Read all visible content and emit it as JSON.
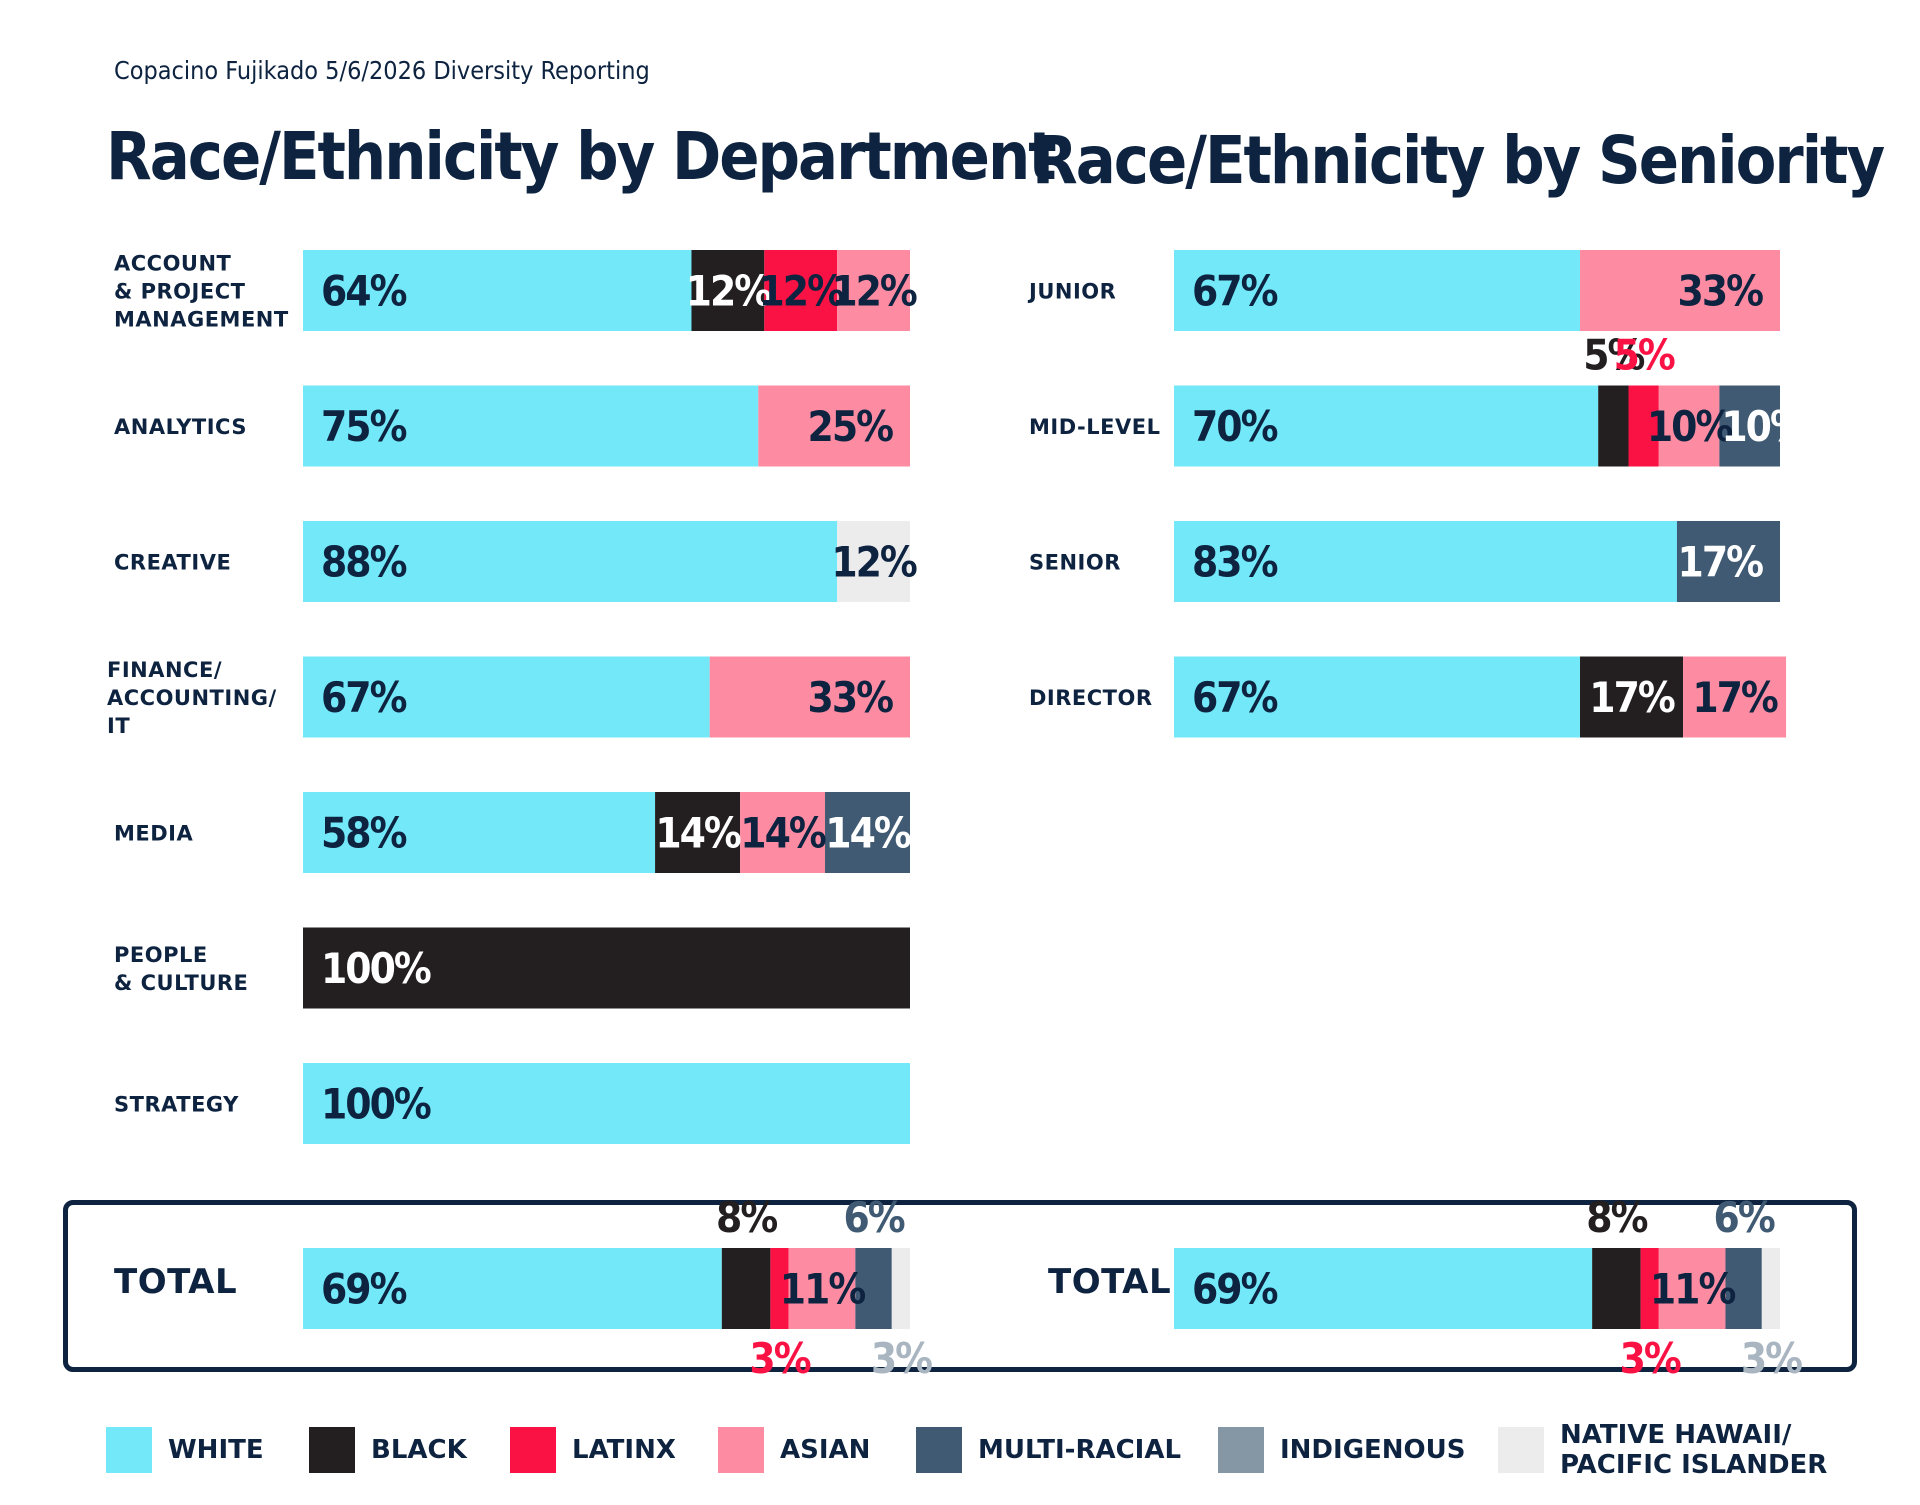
{
  "subtitle": "Copacino Fujikado 5/6/2026 Diversity Reporting",
  "colors": {
    "white": "#72e8f8",
    "black": "#231f20",
    "latinx": "#fb1245",
    "asian": "#fd8ca3",
    "multiracial": "#3f5a72",
    "indigenous": "#8596a5",
    "nhpi": "#ececec",
    "navy": "#0d2340"
  },
  "legend": [
    {
      "key": "white",
      "label": "WHITE",
      "icon": "swatch-square"
    },
    {
      "key": "black",
      "label": "BLACK",
      "icon": "swatch-square"
    },
    {
      "key": "latinx",
      "label": "LATINX",
      "icon": "swatch-square"
    },
    {
      "key": "asian",
      "label": "ASIAN",
      "icon": "swatch-square"
    },
    {
      "key": "multiracial",
      "label": "MULTI-RACIAL",
      "icon": "swatch-square"
    },
    {
      "key": "indigenous",
      "label": "INDIGENOUS",
      "icon": "swatch-square"
    },
    {
      "key": "nhpi",
      "label": "NATIVE HAWAII/\nPACIFIC ISLANDER",
      "icon": "swatch-square"
    }
  ],
  "chart_data": [
    {
      "type": "bar",
      "orientation": "horizontal-stacked-100",
      "title": "Race/Ethnicity by Department",
      "categories": [
        "ACCOUNT\n& PROJECT\nMANAGEMENT",
        "ANALYTICS",
        "CREATIVE",
        "FINANCE/\nACCOUNTING/\nIT",
        "MEDIA",
        "PEOPLE\n& CULTURE",
        "STRATEGY"
      ],
      "series": [
        {
          "name": "WHITE",
          "key": "white",
          "values": [
            64,
            75,
            88,
            67,
            58,
            0,
            100
          ]
        },
        {
          "name": "BLACK",
          "key": "black",
          "values": [
            12,
            0,
            0,
            0,
            14,
            100,
            0
          ]
        },
        {
          "name": "LATINX",
          "key": "latinx",
          "values": [
            12,
            0,
            0,
            0,
            0,
            0,
            0
          ]
        },
        {
          "name": "ASIAN",
          "key": "asian",
          "values": [
            12,
            25,
            0,
            33,
            14,
            0,
            0
          ]
        },
        {
          "name": "MULTI-RACIAL",
          "key": "multiracial",
          "values": [
            0,
            0,
            0,
            0,
            14,
            0,
            0
          ]
        },
        {
          "name": "INDIGENOUS",
          "key": "indigenous",
          "values": [
            0,
            0,
            0,
            0,
            0,
            0,
            0
          ]
        },
        {
          "name": "NATIVE HAWAII/PACIFIC ISLANDER",
          "key": "nhpi",
          "values": [
            0,
            0,
            12,
            0,
            0,
            0,
            0
          ]
        }
      ],
      "total": {
        "label": "TOTAL",
        "values": {
          "white": 69,
          "black": 8,
          "latinx": 3,
          "asian": 11,
          "multiracial": 6,
          "indigenous": 0,
          "nhpi": 3
        }
      },
      "xlim": [
        0,
        100
      ]
    },
    {
      "type": "bar",
      "orientation": "horizontal-stacked-100",
      "title": "Race/Ethnicity by Seniority",
      "categories": [
        "JUNIOR",
        "MID-LEVEL",
        "SENIOR",
        "DIRECTOR"
      ],
      "series": [
        {
          "name": "WHITE",
          "key": "white",
          "values": [
            67,
            70,
            83,
            67
          ]
        },
        {
          "name": "BLACK",
          "key": "black",
          "values": [
            0,
            5,
            0,
            17
          ]
        },
        {
          "name": "LATINX",
          "key": "latinx",
          "values": [
            0,
            5,
            0,
            0
          ]
        },
        {
          "name": "ASIAN",
          "key": "asian",
          "values": [
            33,
            10,
            0,
            17
          ]
        },
        {
          "name": "MULTI-RACIAL",
          "key": "multiracial",
          "values": [
            0,
            10,
            17,
            0
          ]
        },
        {
          "name": "INDIGENOUS",
          "key": "indigenous",
          "values": [
            0,
            0,
            0,
            0
          ]
        },
        {
          "name": "NATIVE HAWAII/PACIFIC ISLANDER",
          "key": "nhpi",
          "values": [
            0,
            0,
            0,
            0
          ]
        }
      ],
      "total": {
        "label": "TOTAL",
        "values": {
          "white": 69,
          "black": 8,
          "latinx": 3,
          "asian": 11,
          "multiracial": 6,
          "indigenous": 0,
          "nhpi": 3
        }
      },
      "xlim": [
        0,
        100
      ]
    }
  ]
}
